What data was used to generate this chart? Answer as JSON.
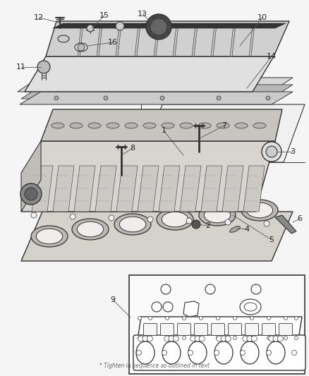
{
  "bg_color": "#f5f5f5",
  "lc": "#333333",
  "lw": 0.8,
  "fill_cover": "#e8e8e8",
  "fill_head": "#e0ddd8",
  "fill_gasket": "#ddd9d2",
  "fill_white": "#ffffff",
  "fill_dark": "#555555",
  "fill_gray": "#aaaaaa",
  "label_fs": 8,
  "leader_color": "#555555",
  "footnote": "* Tighten in sequence as outlined in text"
}
